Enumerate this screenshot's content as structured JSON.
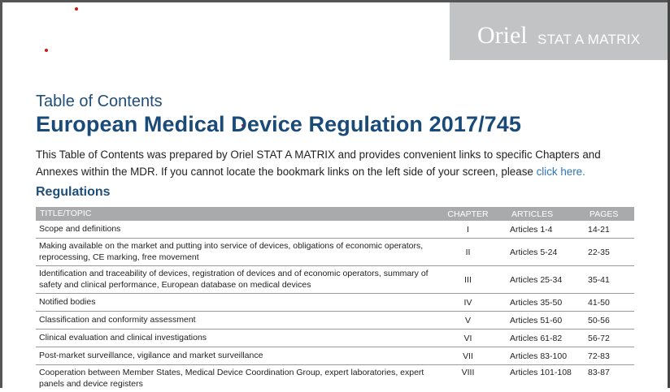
{
  "brand": {
    "name": "Oriel",
    "sub": "STAT A MATRIX"
  },
  "toc_label": "Table of Contents",
  "title": "European Medical Device Regulation 2017/745",
  "intro": {
    "text": "This Table of Contents was prepared by Oriel STAT A MATRIX and provides convenient links to specific Chapters and Annexes within the MDR. If you cannot locate the bookmark links on the left side of your screen, please ",
    "link": "click here."
  },
  "section_heading": "Regulations",
  "table": {
    "headers": {
      "title": "TITLE/TOPIC",
      "chapter": "CHAPTER",
      "articles": "ARTICLES",
      "pages": "PAGES"
    },
    "rows": [
      {
        "title": "Scope and definitions",
        "chapter": "I",
        "articles": "Articles 1-4",
        "pages": "14-21"
      },
      {
        "title": "Making available on the market and putting into service of devices, obligations of economic operators, reprocessing, CE marking, free movement",
        "chapter": "II",
        "articles": "Articles 5-24",
        "pages": "22-35"
      },
      {
        "title": "Identification and traceability of devices, registration of devices and of economic operators, summary of safety and clinical performance, European database on medical devices",
        "chapter": "III",
        "articles": "Articles 25-34",
        "pages": "35-41"
      },
      {
        "title": "Notified bodies",
        "chapter": "IV",
        "articles": "Articles 35-50",
        "pages": "41-50"
      },
      {
        "title": "Classification and conformity assessment",
        "chapter": "V",
        "articles": "Articles 51-60",
        "pages": "50-56"
      },
      {
        "title": "Clinical evaluation and clinical investigations",
        "chapter": "VI",
        "articles": "Articles 61-82",
        "pages": "56-72"
      },
      {
        "title": "Post-market surveillance, vigilance and market surveillance",
        "chapter": "VII",
        "articles": "Articles 83-100",
        "pages": "72-83"
      },
      {
        "title": "Cooperation between Member States, Medical Device Coordination Group, expert laboratories, expert panels and device registers",
        "chapter": "VIII",
        "articles": "Articles 101-108",
        "pages": "83-87"
      }
    ]
  },
  "colors": {
    "heading_blue": "#1f4e79",
    "link_blue": "#2e75b6",
    "header_gray": "#a9aaab",
    "brand_gray": "#c2c3c5"
  }
}
